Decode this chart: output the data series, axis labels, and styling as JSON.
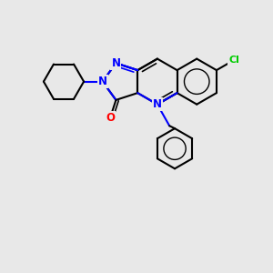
{
  "bg_color": "#e8e8e8",
  "bond_color": "#000000",
  "nitrogen_color": "#0000ff",
  "oxygen_color": "#ff0000",
  "chlorine_color": "#00cc00",
  "lw": 1.5,
  "lw2": 1.2,
  "fs": 8.5,
  "xlim": [
    0,
    10
  ],
  "ylim": [
    0,
    10
  ]
}
